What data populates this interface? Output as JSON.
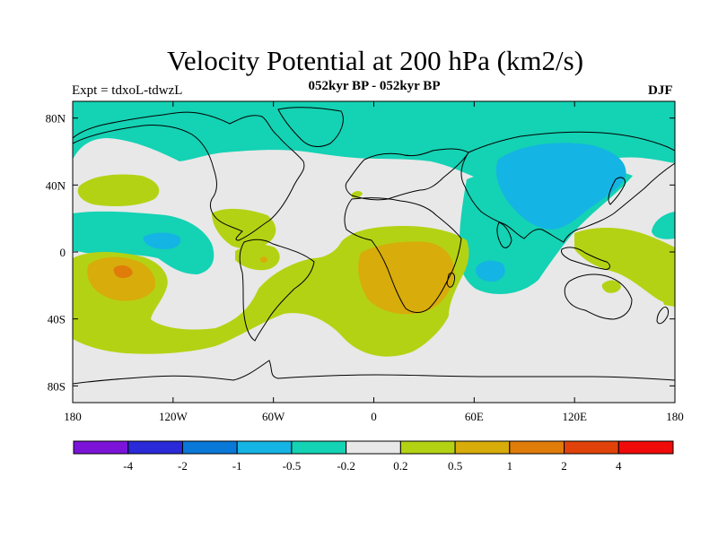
{
  "header": {
    "title": "Velocity Potential at 200 hPa (km2/s)",
    "subtitle": "052kyr BP - 052kyr BP",
    "experiment": "Expt = tdxoL-tdwzL",
    "season": "DJF"
  },
  "map": {
    "projection": "cylindrical-equidistant",
    "lon_range": [
      -180,
      180
    ],
    "lat_range": [
      -90,
      90
    ],
    "lat_ticks": [
      {
        "value": 80,
        "label": "80N"
      },
      {
        "value": 40,
        "label": "40N"
      },
      {
        "value": 0,
        "label": "0"
      },
      {
        "value": -40,
        "label": "40S"
      },
      {
        "value": -80,
        "label": "80S"
      }
    ],
    "lon_ticks": [
      {
        "value": -180,
        "label": "180"
      },
      {
        "value": -120,
        "label": "120W"
      },
      {
        "value": -60,
        "label": "60W"
      },
      {
        "value": 0,
        "label": "0"
      },
      {
        "value": 60,
        "label": "60E"
      },
      {
        "value": 120,
        "label": "120E"
      },
      {
        "value": 180,
        "label": "180"
      }
    ],
    "background_color": "#e8e8e8",
    "coastline_color": "#000000"
  },
  "colorbar": {
    "colors": [
      "#7b14d8",
      "#2a2ad8",
      "#0a78d8",
      "#14b4e4",
      "#14d2b4",
      "#e8e8e8",
      "#b4d214",
      "#d8ac0a",
      "#e07c0a",
      "#e0420a",
      "#f00a0a"
    ],
    "labels": [
      "-4",
      "-2",
      "-1",
      "-0.5",
      "-0.2",
      "0.2",
      "0.5",
      "1",
      "2",
      "4"
    ]
  }
}
